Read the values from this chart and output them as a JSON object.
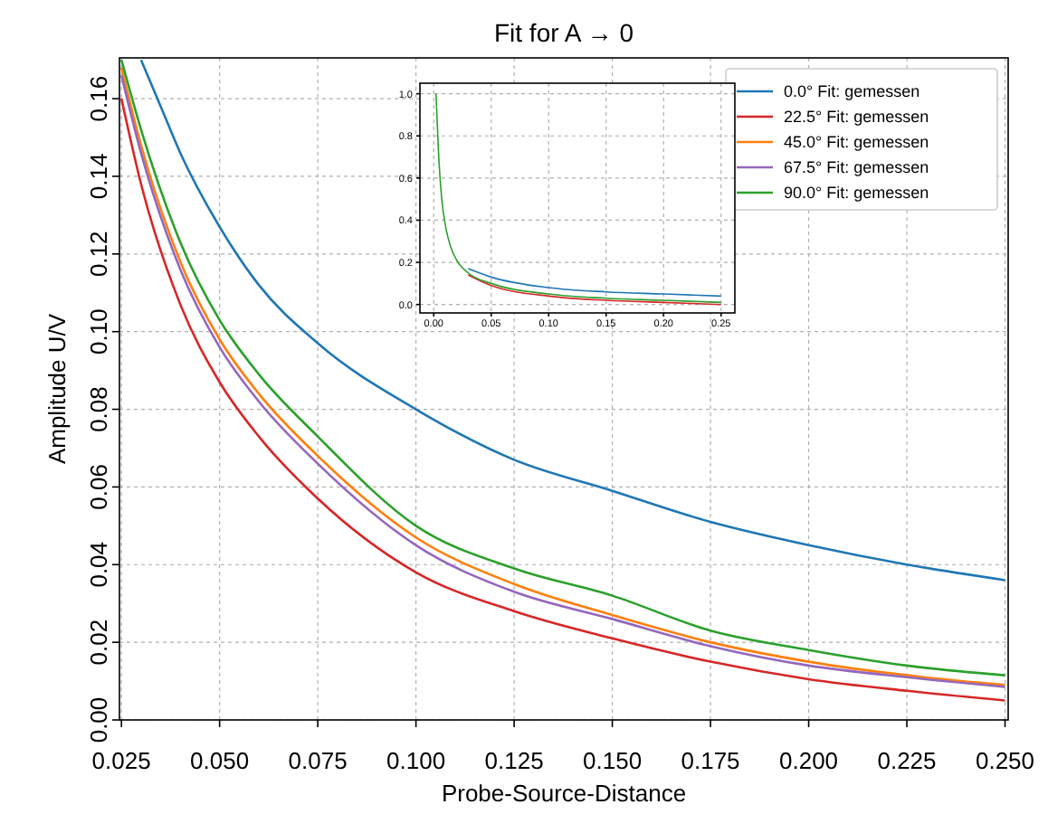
{
  "chart_data": [
    {
      "type": "line",
      "title": "Fit for A → 0",
      "xlabel": "Probe-Source-Distance",
      "ylabel": "Amplitude U/V",
      "xlim": [
        0.0245,
        0.2508
      ],
      "ylim": [
        0,
        0.1705
      ],
      "xticks": [
        0.025,
        {
          "value": 0.05,
          "label": "0.050"
        },
        0.075,
        {
          "value": 0.1,
          "label": "0.100"
        },
        0.125,
        {
          "value": 0.15,
          "label": "0.150"
        },
        0.175,
        {
          "value": 0.2,
          "label": "0.200"
        },
        0.225,
        {
          "value": 0.25,
          "label": "0.250"
        }
      ],
      "yticks": [
        {
          "value": 0,
          "label": "0.00"
        },
        0.02,
        0.04,
        0.06,
        0.08,
        {
          "value": 0.1,
          "label": "0.10"
        },
        0.12,
        0.14,
        0.16
      ],
      "grid": true,
      "legend": "top right",
      "series": [
        {
          "name": "0.0° Fit: gemessen",
          "color": "#1f77b4",
          "x": [
            0.03,
            0.035,
            0.04,
            0.05,
            0.06,
            0.075,
            0.1,
            0.125,
            0.15,
            0.175,
            0.2,
            0.225,
            0.25
          ],
          "values": [
            0.17,
            0.158,
            0.146,
            0.127,
            0.112,
            0.097,
            0.08,
            0.067,
            0.059,
            0.051,
            0.045,
            0.04,
            0.036
          ]
        },
        {
          "name": "22.5° Fit: gemessen",
          "color": "#d62728",
          "x": [
            0.025,
            0.03,
            0.04,
            0.05,
            0.06,
            0.075,
            0.1,
            0.125,
            0.15,
            0.175,
            0.2,
            0.225,
            0.25
          ],
          "values": [
            0.16,
            0.138,
            0.107,
            0.087,
            0.073,
            0.057,
            0.038,
            0.028,
            0.021,
            0.015,
            0.0105,
            0.0075,
            0.005
          ]
        },
        {
          "name": "45.0° Fit: gemessen",
          "color": "#ff7f0e",
          "x": [
            0.025,
            0.03,
            0.04,
            0.05,
            0.06,
            0.075,
            0.1,
            0.125,
            0.15,
            0.175,
            0.2,
            0.225,
            0.25
          ],
          "values": [
            0.168,
            0.148,
            0.118,
            0.098,
            0.084,
            0.068,
            0.047,
            0.035,
            0.027,
            0.02,
            0.015,
            0.0115,
            0.009
          ]
        },
        {
          "name": "67.5° Fit: gemessen",
          "color": "#9467bd",
          "x": [
            0.025,
            0.03,
            0.04,
            0.05,
            0.06,
            0.075,
            0.1,
            0.125,
            0.15,
            0.175,
            0.2,
            0.225,
            0.25
          ],
          "values": [
            0.166,
            0.146,
            0.116,
            0.096,
            0.082,
            0.066,
            0.045,
            0.033,
            0.026,
            0.019,
            0.014,
            0.011,
            0.0085
          ]
        },
        {
          "name": "90.0° Fit: gemessen",
          "color": "#2ca02c",
          "x": [
            0.025,
            0.03,
            0.04,
            0.05,
            0.06,
            0.075,
            0.1,
            0.125,
            0.15,
            0.175,
            0.2,
            0.225,
            0.25
          ],
          "values": [
            0.17,
            0.152,
            0.123,
            0.103,
            0.089,
            0.073,
            0.05,
            0.039,
            0.032,
            0.023,
            0.018,
            0.014,
            0.0115
          ]
        }
      ]
    },
    {
      "type": "line",
      "xlim": [
        -0.012,
        0.262
      ],
      "ylim": [
        -0.04,
        1.05
      ],
      "xticks": [
        {
          "value": 0,
          "label": "0.00"
        },
        0.05,
        {
          "value": 0.1,
          "label": "0.10"
        },
        0.15,
        {
          "value": 0.2,
          "label": "0.20"
        },
        0.25
      ],
      "yticks": [
        {
          "value": 0,
          "label": "0.0"
        },
        0.2,
        0.4,
        0.6,
        0.8,
        {
          "value": 1,
          "label": "1.0"
        }
      ],
      "grid": true,
      "series": [
        {
          "color": "#1f77b4",
          "x": [
            0.03,
            0.05,
            0.1,
            0.15,
            0.2,
            0.25
          ],
          "values": [
            0.17,
            0.13,
            0.08,
            0.06,
            0.05,
            0.04
          ]
        },
        {
          "color": "#d62728",
          "x": [
            0.03,
            0.05,
            0.1,
            0.15,
            0.2,
            0.25
          ],
          "values": [
            0.14,
            0.09,
            0.04,
            0.02,
            0.01,
            0.0
          ]
        },
        {
          "color": "#2ca02c",
          "x": [
            0.002,
            0.004,
            0.007,
            0.01,
            0.015,
            0.02,
            0.03,
            0.05,
            0.1,
            0.15,
            0.2,
            0.25
          ],
          "values": [
            1,
            0.74,
            0.5,
            0.38,
            0.27,
            0.21,
            0.15,
            0.1,
            0.05,
            0.03,
            0.02,
            0.01
          ]
        }
      ]
    }
  ]
}
